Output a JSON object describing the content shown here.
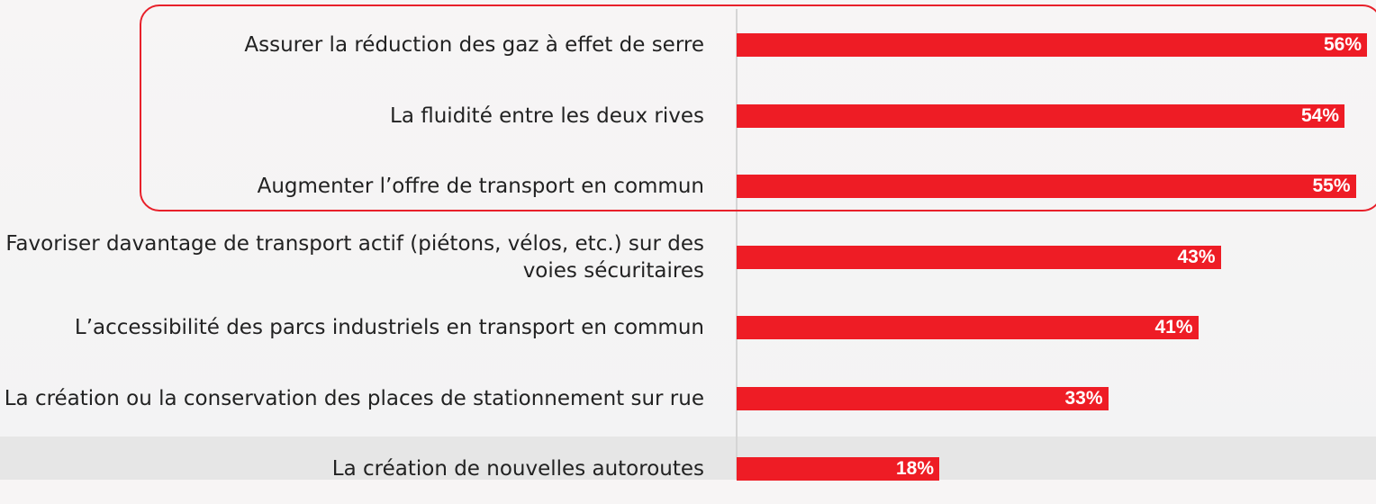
{
  "chart_data": {
    "type": "bar",
    "orientation": "horizontal",
    "categories": [
      "Assurer la réduction des gaz à effet de serre",
      "La fluidité entre les deux rives",
      "Augmenter l’offre de transport en commun",
      "Favoriser davantage de transport actif (piétons, vélos, etc.) sur des voies sécuritaires",
      "L’accessibilité des parcs industriels en transport en commun",
      "La création ou la conservation des places de stationnement sur rue",
      "La création de nouvelles autoroutes"
    ],
    "values": [
      56,
      54,
      55,
      43,
      41,
      33,
      18
    ],
    "value_labels": [
      "56%",
      "54%",
      "55%",
      "43%",
      "41%",
      "33%",
      "18%"
    ],
    "color": "#ee1c25"
  }
}
